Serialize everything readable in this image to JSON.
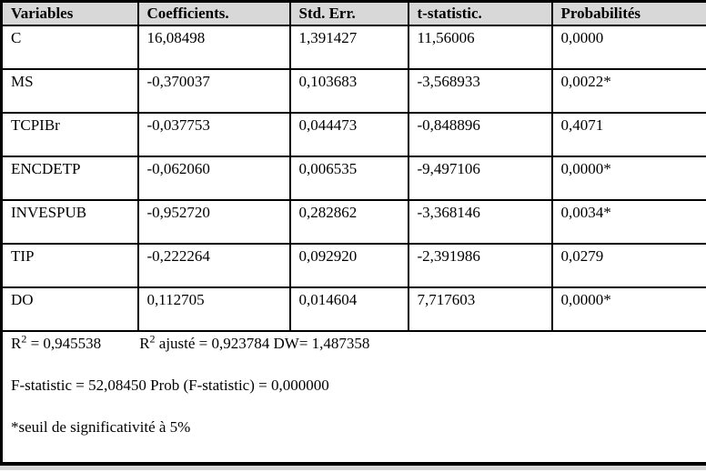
{
  "table": {
    "columns": [
      "Variables",
      "Coefficients.",
      "Std. Err.",
      "t-statistic.",
      "Probabilités"
    ],
    "rows": [
      {
        "cells": [
          "C",
          "16,08498",
          "1,391427",
          "11,56006",
          "0,0000"
        ]
      },
      {
        "cells": [
          "MS",
          "-0,370037",
          "0,103683",
          "-3,568933",
          "0,0022*"
        ]
      },
      {
        "cells": [
          "TCPIBr",
          "-0,037753",
          "0,044473",
          "-0,848896",
          "0,4071"
        ]
      },
      {
        "cells": [
          "ENCDETP",
          "-0,062060",
          "0,006535",
          "-9,497106",
          "0,0000*"
        ]
      },
      {
        "cells": [
          "INVESPUB",
          "-0,952720",
          "0,282862",
          "-3,368146",
          "0,0034*"
        ]
      },
      {
        "cells": [
          "TIP",
          "-0,222264",
          "0,092920",
          "-2,391986",
          "0,0279"
        ]
      },
      {
        "cells": [
          "DO",
          "0,112705",
          "0,014604",
          "7,717603",
          "0,0000*"
        ]
      }
    ]
  },
  "footer": {
    "r2": {
      "base": "R",
      "sup": "2",
      "rest": " = 0,945538"
    },
    "r2_adjusted": {
      "base": "R",
      "sup": "2",
      "rest": " ajusté = 0,923784 DW= 1,487358"
    },
    "f_statistic": "F-statistic = 52,08450 Prob (F-statistic) = 0,000000",
    "note": "*seuil de significativité à 5%"
  },
  "colors": {
    "header_bg": "#d8d8d8",
    "border": "#000000",
    "cutoff_strip_bg": "#d8d8d8"
  }
}
